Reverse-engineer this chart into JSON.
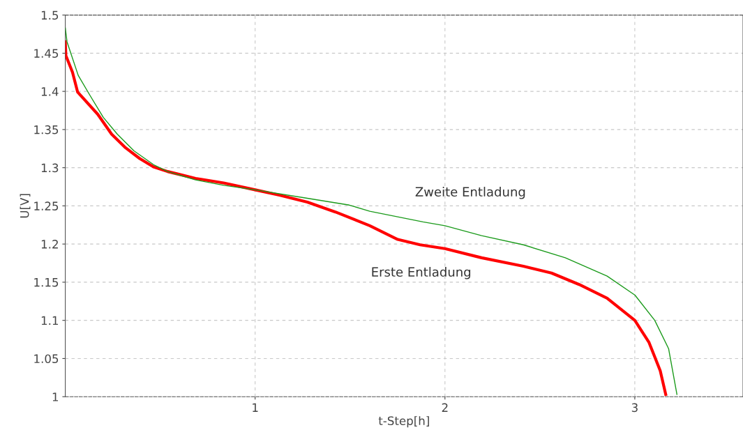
{
  "chart_data": {
    "type": "line",
    "xlabel": "t-Step[h]",
    "ylabel": "U[V]",
    "xlim": [
      0,
      3.57
    ],
    "ylim": [
      1.0,
      1.5
    ],
    "xticks": [
      1,
      2,
      3
    ],
    "yticks": [
      1,
      1.05,
      1.1,
      1.15,
      1.2,
      1.25,
      1.3,
      1.35,
      1.4,
      1.45,
      1.5
    ],
    "grid": true,
    "line_style": "solid",
    "series": [
      {
        "name": "Erste Entladung",
        "color": "#ff0000",
        "x": [
          0,
          0.003,
          0.038,
          0.065,
          0.171,
          0.244,
          0.318,
          0.392,
          0.465,
          0.539,
          0.686,
          0.834,
          1.0,
          1.128,
          1.275,
          1.423,
          1.604,
          1.751,
          1.869,
          2.0,
          2.193,
          2.413,
          2.561,
          2.707,
          2.854,
          3.0,
          3.075,
          3.134,
          3.163
        ],
        "values": [
          1.465,
          1.447,
          1.425,
          1.399,
          1.37,
          1.344,
          1.326,
          1.312,
          1.301,
          1.295,
          1.286,
          1.28,
          1.271,
          1.264,
          1.255,
          1.242,
          1.224,
          1.206,
          1.199,
          1.194,
          1.182,
          1.171,
          1.162,
          1.147,
          1.129,
          1.1,
          1.071,
          1.034,
          1.003
        ]
      },
      {
        "name": "Zweite Entladung",
        "color": "#1a9a1a",
        "x": [
          0,
          0.009,
          0.068,
          0.127,
          0.2,
          0.274,
          0.362,
          0.465,
          0.539,
          0.686,
          0.834,
          1.0,
          1.275,
          1.496,
          1.604,
          1.884,
          2.0,
          2.193,
          2.413,
          2.634,
          2.854,
          3.001,
          3.105,
          3.178,
          3.222
        ],
        "values": [
          1.483,
          1.465,
          1.421,
          1.396,
          1.366,
          1.344,
          1.322,
          1.304,
          1.295,
          1.284,
          1.277,
          1.271,
          1.26,
          1.251,
          1.243,
          1.229,
          1.224,
          1.211,
          1.199,
          1.182,
          1.158,
          1.133,
          1.1,
          1.063,
          1.003
        ]
      }
    ]
  }
}
